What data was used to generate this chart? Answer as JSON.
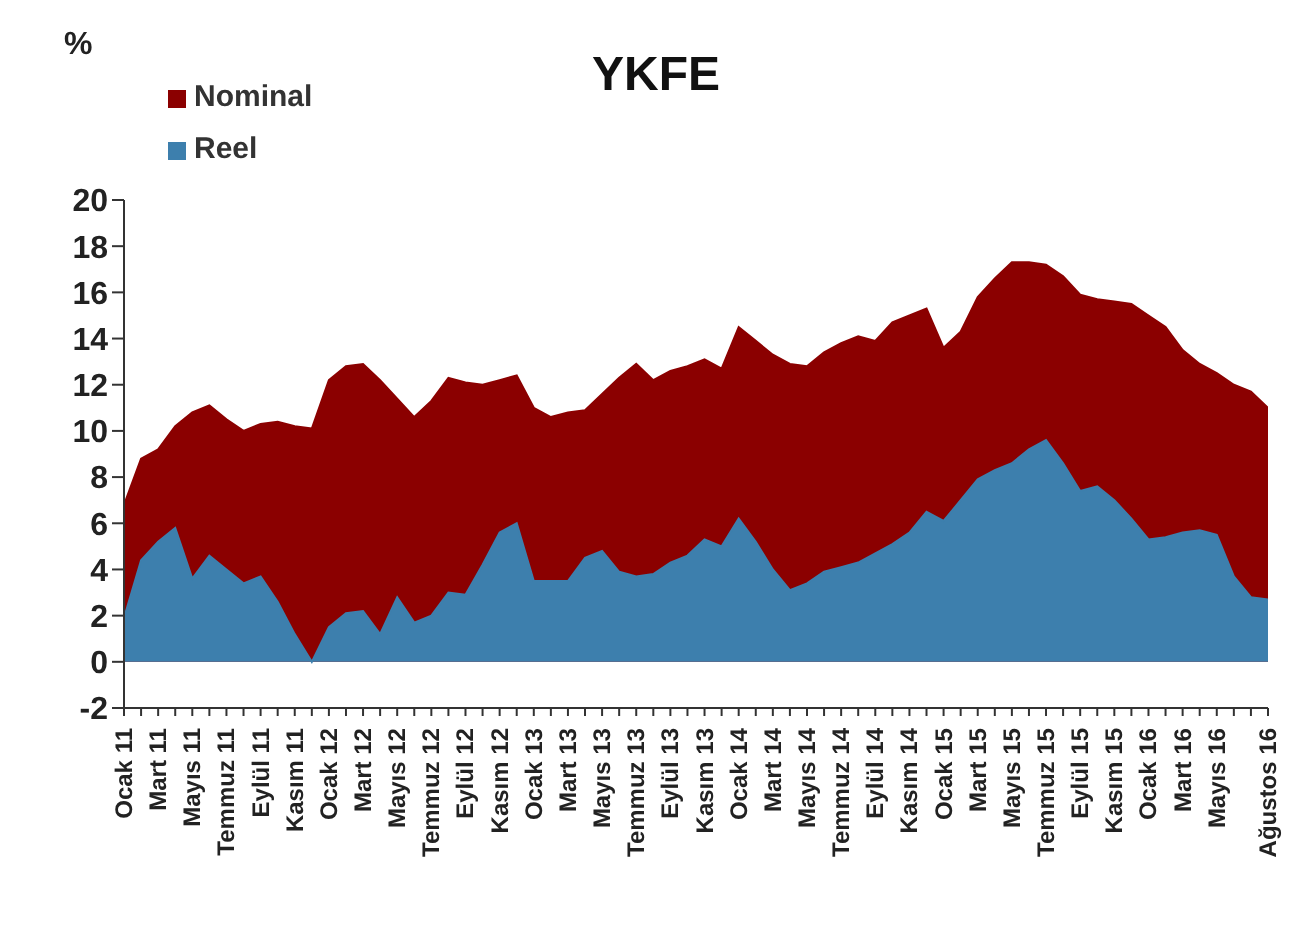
{
  "chart_data": {
    "type": "area",
    "title": "YKFE",
    "ylabel": "%",
    "categories": [
      "Ocak 11",
      null,
      "Mart 11",
      null,
      "Mayıs 11",
      null,
      "Temmuz 11",
      null,
      "Eylül 11",
      null,
      "Kasım 11",
      null,
      "Ocak 12",
      null,
      "Mart 12",
      null,
      "Mayıs 12",
      null,
      "Temmuz 12",
      null,
      "Eylül 12",
      null,
      "Kasım 12",
      null,
      "Ocak 13",
      null,
      "Mart 13",
      null,
      "Mayıs 13",
      null,
      "Temmuz 13",
      null,
      "Eylül 13",
      null,
      "Kasım 13",
      null,
      "Ocak 14",
      null,
      "Mart 14",
      null,
      "Mayıs 14",
      null,
      "Temmuz 14",
      null,
      "Eylül 14",
      null,
      "Kasım 14",
      null,
      "Ocak 15",
      null,
      "Mart 15",
      null,
      "Mayıs 15",
      null,
      "Temmuz 15",
      null,
      "Eylül 15",
      null,
      "Kasım 15",
      null,
      "Ocak 16",
      null,
      "Mart 16",
      null,
      "Mayıs 16",
      null,
      null,
      "Ağustos 16"
    ],
    "series": [
      {
        "name": "Nominal",
        "color": "#8b0000",
        "values": [
          6.8,
          8.8,
          9.2,
          10.2,
          10.8,
          11.1,
          10.5,
          10.0,
          10.3,
          10.4,
          10.2,
          10.1,
          12.2,
          12.8,
          12.9,
          12.2,
          11.4,
          10.6,
          11.3,
          12.3,
          12.1,
          12.0,
          12.2,
          12.4,
          11.0,
          10.6,
          10.8,
          10.9,
          11.6,
          12.3,
          12.9,
          12.2,
          12.6,
          12.8,
          13.1,
          12.7,
          14.5,
          13.9,
          13.3,
          12.9,
          12.8,
          13.4,
          13.8,
          14.1,
          13.9,
          14.7,
          15.0,
          15.3,
          13.6,
          14.3,
          15.8,
          16.6,
          17.3,
          17.3,
          17.2,
          16.7,
          15.9,
          15.7,
          15.6,
          15.5,
          15.0,
          14.5,
          13.5,
          12.9,
          12.5,
          12.0,
          11.7,
          11.0
        ]
      },
      {
        "name": "Reel",
        "color": "#3d7fad",
        "values": [
          1.9,
          4.4,
          5.2,
          5.8,
          3.6,
          4.6,
          4.0,
          3.4,
          3.7,
          2.6,
          1.2,
          0,
          1.5,
          2.1,
          2.2,
          1.2,
          2.8,
          1.7,
          2.0,
          3.0,
          2.9,
          4.2,
          5.6,
          6.0,
          3.5,
          3.5,
          3.5,
          4.5,
          4.8,
          3.9,
          3.7,
          3.8,
          4.3,
          4.6,
          5.3,
          5.0,
          6.2,
          5.2,
          4.0,
          3.1,
          3.4,
          3.9,
          4.1,
          4.3,
          4.7,
          5.1,
          5.6,
          6.5,
          6.1,
          7.0,
          7.9,
          8.3,
          8.6,
          9.2,
          9.6,
          8.6,
          7.4,
          7.6,
          7.0,
          6.2,
          5.3,
          5.4,
          5.6,
          5.7,
          5.5,
          3.7,
          2.8,
          2.7
        ]
      }
    ],
    "ylim": [
      -2,
      20
    ],
    "yticks": [
      -2,
      0,
      2,
      4,
      6,
      8,
      10,
      12,
      14,
      16,
      18,
      20
    ],
    "grid": false,
    "legend": "top left"
  }
}
